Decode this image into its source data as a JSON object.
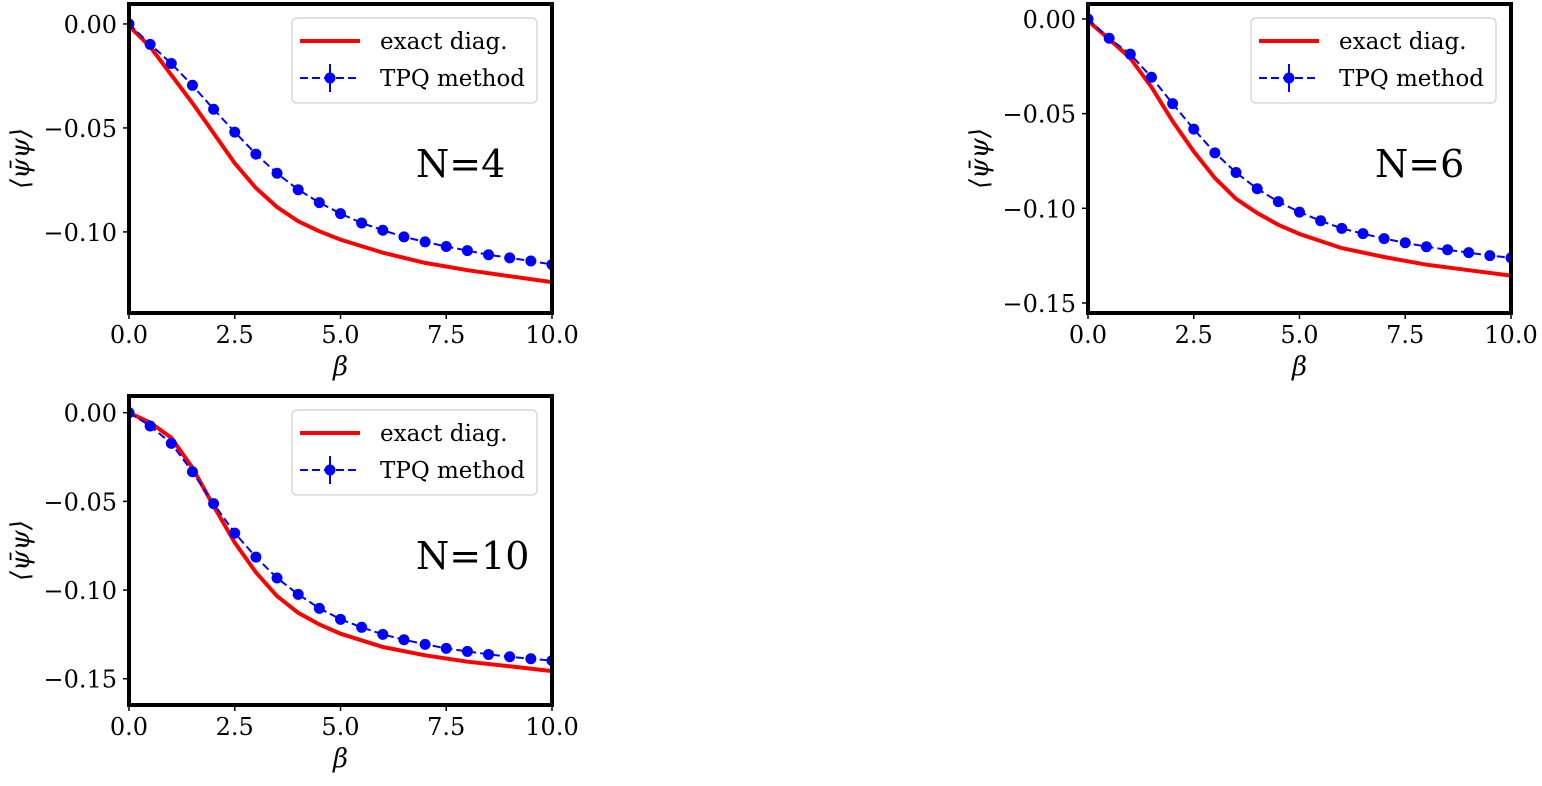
{
  "chart_data": [
    {
      "type": "line",
      "annotation": "N=4",
      "xlabel": "β",
      "ylabel": "⟨ψ̄ψ⟩",
      "xlim": [
        0,
        10
      ],
      "ylim": [
        -0.139,
        0.0096
      ],
      "xticks": [
        "0.0",
        "2.5",
        "5.0",
        "7.5",
        "10.0"
      ],
      "xtick_values": [
        0,
        2.5,
        5,
        7.5,
        10
      ],
      "yticks": [
        "0.00",
        "−0.05",
        "−0.10"
      ],
      "ytick_values": [
        0,
        -0.05,
        -0.1
      ],
      "legend_position": "upper-right",
      "series": [
        {
          "name": "exact diag.",
          "color": "#ff0000",
          "style": "solid",
          "x": [
            0,
            0.5,
            1,
            1.5,
            2,
            2.5,
            3,
            3.5,
            4,
            4.5,
            5,
            6,
            7,
            8,
            9,
            10
          ],
          "y": [
            -0.001,
            -0.011,
            -0.0245,
            -0.038,
            -0.0525,
            -0.067,
            -0.0789,
            -0.088,
            -0.0949,
            -0.0997,
            -0.1037,
            -0.11,
            -0.1149,
            -0.1184,
            -0.1213,
            -0.1242
          ]
        },
        {
          "name": "TPQ method",
          "color": "#0000ff",
          "style": "dashed-markers",
          "x": [
            0,
            0.5,
            1,
            1.5,
            2,
            2.5,
            3,
            3.5,
            4,
            4.5,
            5,
            5.5,
            6,
            6.5,
            7,
            7.5,
            8,
            8.5,
            9,
            9.5,
            10
          ],
          "y": [
            0.0,
            -0.0098,
            -0.019,
            -0.0295,
            -0.041,
            -0.052,
            -0.0626,
            -0.0718,
            -0.0797,
            -0.0859,
            -0.0912,
            -0.0957,
            -0.0992,
            -0.1024,
            -0.1048,
            -0.107,
            -0.109,
            -0.111,
            -0.1125,
            -0.114,
            -0.1157
          ]
        }
      ]
    },
    {
      "type": "line",
      "annotation": "N=6",
      "xlabel": "β",
      "ylabel": "⟨ψ̄ψ⟩",
      "xlim": [
        0,
        10
      ],
      "ylim": [
        -0.1553,
        0.0079
      ],
      "xticks": [
        "0.0",
        "2.5",
        "5.0",
        "7.5",
        "10.0"
      ],
      "xtick_values": [
        0,
        2.5,
        5,
        7.5,
        10
      ],
      "yticks": [
        "0.00",
        "−0.05",
        "−0.10",
        "−0.15"
      ],
      "ytick_values": [
        0,
        -0.05,
        -0.1,
        -0.15
      ],
      "legend_position": "upper-right",
      "series": [
        {
          "name": "exact diag.",
          "color": "#ff0000",
          "style": "solid",
          "x": [
            0,
            0.5,
            1,
            1.5,
            2,
            2.5,
            3,
            3.5,
            4,
            4.5,
            5,
            6,
            7,
            8,
            9,
            10
          ],
          "y": [
            -0.001,
            -0.0107,
            -0.0207,
            -0.036,
            -0.054,
            -0.07,
            -0.084,
            -0.095,
            -0.1025,
            -0.1087,
            -0.1136,
            -0.121,
            -0.1257,
            -0.1298,
            -0.1327,
            -0.1356
          ]
        },
        {
          "name": "TPQ method",
          "color": "#0000ff",
          "style": "dashed-markers",
          "x": [
            0,
            0.5,
            1,
            1.5,
            2,
            2.5,
            3,
            3.5,
            4,
            4.5,
            5,
            5.5,
            6,
            6.5,
            7,
            7.5,
            8,
            8.5,
            9,
            9.5,
            10
          ],
          "y": [
            0.0,
            -0.0102,
            -0.0186,
            -0.0308,
            -0.0447,
            -0.0582,
            -0.0707,
            -0.0811,
            -0.0897,
            -0.0965,
            -0.102,
            -0.1066,
            -0.1106,
            -0.1134,
            -0.116,
            -0.1182,
            -0.1203,
            -0.1219,
            -0.1234,
            -0.125,
            -0.1261
          ]
        }
      ]
    },
    {
      "type": "line",
      "annotation": "N=10",
      "xlabel": "β",
      "ylabel": "⟨ψ̄ψ⟩",
      "xlim": [
        0,
        10
      ],
      "ylim": [
        -0.1648,
        0.0094
      ],
      "xticks": [
        "0.0",
        "2.5",
        "5.0",
        "7.5",
        "10.0"
      ],
      "xtick_values": [
        0,
        2.5,
        5,
        7.5,
        10
      ],
      "yticks": [
        "0.00",
        "−0.05",
        "−0.10",
        "−0.15"
      ],
      "ytick_values": [
        0,
        -0.05,
        -0.1,
        -0.15
      ],
      "legend_position": "upper-right",
      "series": [
        {
          "name": "exact diag.",
          "color": "#ff0000",
          "style": "solid",
          "x": [
            0,
            0.5,
            1,
            1.5,
            2,
            2.5,
            3,
            3.5,
            4,
            4.5,
            5,
            6,
            7,
            8,
            9,
            10
          ],
          "y": [
            0.0,
            -0.0056,
            -0.0141,
            -0.031,
            -0.0526,
            -0.0733,
            -0.09,
            -0.1034,
            -0.1128,
            -0.1194,
            -0.1246,
            -0.1321,
            -0.1368,
            -0.1404,
            -0.143,
            -0.1457
          ]
        },
        {
          "name": "TPQ method",
          "color": "#0000ff",
          "style": "dashed-markers",
          "x": [
            0,
            0.5,
            1,
            1.5,
            2,
            2.5,
            3,
            3.5,
            4,
            4.5,
            5,
            5.5,
            6,
            6.5,
            7,
            7.5,
            8,
            8.5,
            9,
            9.5,
            10
          ],
          "y": [
            0.0,
            -0.0075,
            -0.0173,
            -0.0333,
            -0.0513,
            -0.0679,
            -0.0814,
            -0.0932,
            -0.1024,
            -0.1103,
            -0.1165,
            -0.121,
            -0.125,
            -0.128,
            -0.1306,
            -0.1329,
            -0.1346,
            -0.1363,
            -0.1376,
            -0.1387,
            -0.1398
          ]
        }
      ]
    }
  ]
}
